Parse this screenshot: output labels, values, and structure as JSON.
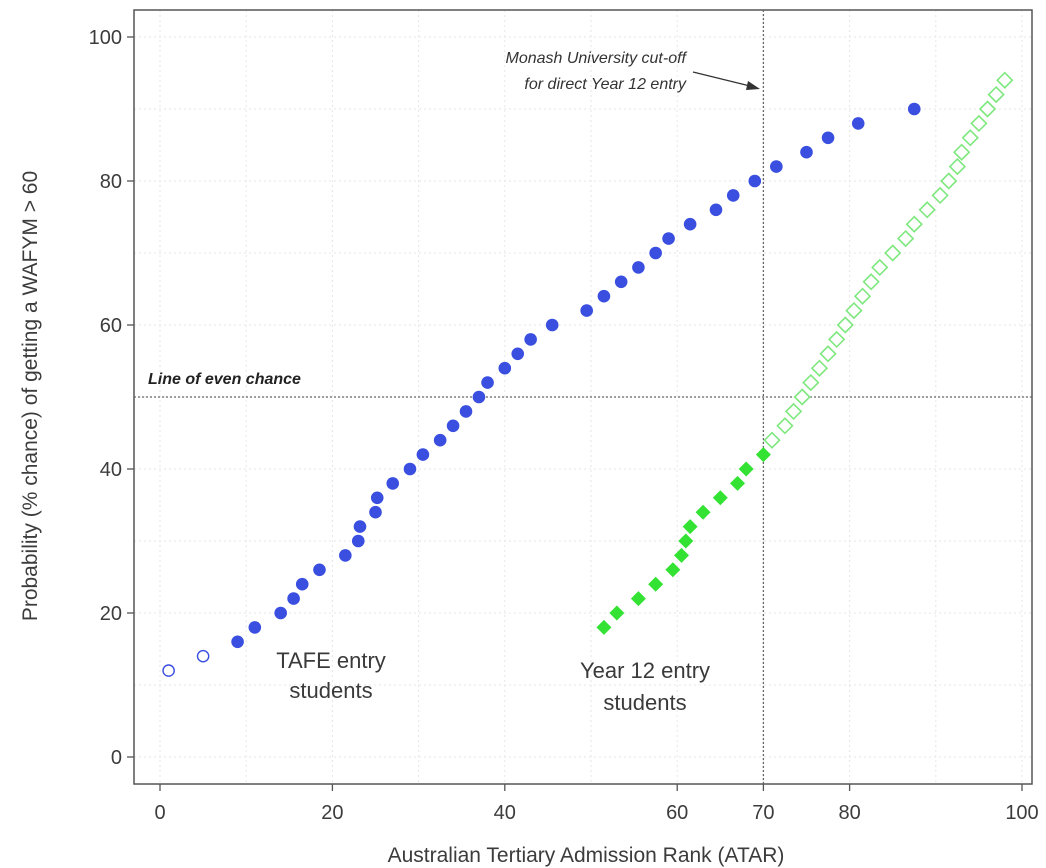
{
  "chart_data": {
    "type": "scatter",
    "xlabel": "Australian Tertiary Admission Rank (ATAR)",
    "ylabel": "Probability (% chance) of getting a WAFYM > 60",
    "xlim": [
      -3,
      102
    ],
    "ylim": [
      -5,
      104
    ],
    "x_ticks": [
      0,
      20,
      40,
      60,
      70,
      80,
      100
    ],
    "y_ticks": [
      0,
      20,
      40,
      60,
      80,
      100
    ],
    "grid": true,
    "cutoff_x": 70,
    "even_chance_y": 50,
    "annotations": {
      "cutoff_line1": "Monash University cut-off",
      "cutoff_line2": "for direct Year 12 entry",
      "even_chance": "Line of even chance",
      "tafe_line1": "TAFE entry",
      "tafe_line2": "students",
      "y12_line1": "Year 12 entry",
      "y12_line2": "students"
    },
    "series": [
      {
        "group": "tafe",
        "marker": "circle",
        "filled": false,
        "color": "#3a4fe0",
        "points": [
          [
            1,
            12
          ],
          [
            5,
            14
          ]
        ]
      },
      {
        "group": "tafe",
        "marker": "circle",
        "filled": true,
        "color": "#3a4fe0",
        "points": [
          [
            9,
            16
          ],
          [
            11,
            18
          ],
          [
            14,
            20
          ],
          [
            15.5,
            22
          ],
          [
            16.5,
            24
          ],
          [
            18.5,
            26
          ],
          [
            21.5,
            28
          ],
          [
            23,
            30
          ],
          [
            23.2,
            32
          ],
          [
            25,
            34
          ],
          [
            25.2,
            36
          ],
          [
            27,
            38
          ],
          [
            29,
            40
          ],
          [
            30.5,
            42
          ],
          [
            32.5,
            44
          ],
          [
            34,
            46
          ],
          [
            35.5,
            48
          ],
          [
            37,
            50
          ],
          [
            38,
            52
          ],
          [
            40,
            54
          ],
          [
            41.5,
            56
          ],
          [
            43,
            58
          ],
          [
            45.5,
            60
          ],
          [
            49.5,
            62
          ],
          [
            51.5,
            64
          ],
          [
            53.5,
            66
          ],
          [
            55.5,
            68
          ],
          [
            57.5,
            70
          ],
          [
            59,
            72
          ],
          [
            61.5,
            74
          ],
          [
            64.5,
            76
          ],
          [
            66.5,
            78
          ],
          [
            69,
            80
          ],
          [
            71.5,
            82
          ],
          [
            75,
            84
          ],
          [
            77.5,
            86
          ],
          [
            81,
            88
          ],
          [
            87.5,
            90
          ]
        ]
      },
      {
        "group": "year12",
        "marker": "diamond",
        "filled": true,
        "color": "#33e233",
        "points": [
          [
            51.5,
            18
          ],
          [
            53,
            20
          ],
          [
            55.5,
            22
          ],
          [
            57.5,
            24
          ],
          [
            59.5,
            26
          ],
          [
            60.5,
            28
          ],
          [
            61,
            30
          ],
          [
            61.5,
            32
          ],
          [
            63,
            34
          ],
          [
            65,
            36
          ],
          [
            67,
            38
          ],
          [
            68,
            40
          ],
          [
            70,
            42
          ]
        ]
      },
      {
        "group": "year12",
        "marker": "diamond",
        "filled": false,
        "color": "#7ee87e",
        "points": [
          [
            71,
            44
          ],
          [
            72.5,
            46
          ],
          [
            73.5,
            48
          ],
          [
            74.5,
            50
          ],
          [
            75.5,
            52
          ],
          [
            76.5,
            54
          ],
          [
            77.5,
            56
          ],
          [
            78.5,
            58
          ],
          [
            79.5,
            60
          ],
          [
            80.5,
            62
          ],
          [
            81.5,
            64
          ],
          [
            82.5,
            66
          ],
          [
            83.5,
            68
          ],
          [
            85,
            70
          ],
          [
            86.5,
            72
          ],
          [
            87.5,
            74
          ],
          [
            89,
            76
          ],
          [
            90.5,
            78
          ],
          [
            91.5,
            80
          ],
          [
            92.5,
            82
          ],
          [
            93,
            84
          ],
          [
            94,
            86
          ],
          [
            95,
            88
          ],
          [
            96,
            90
          ],
          [
            97,
            92
          ],
          [
            98,
            94
          ]
        ]
      }
    ]
  }
}
